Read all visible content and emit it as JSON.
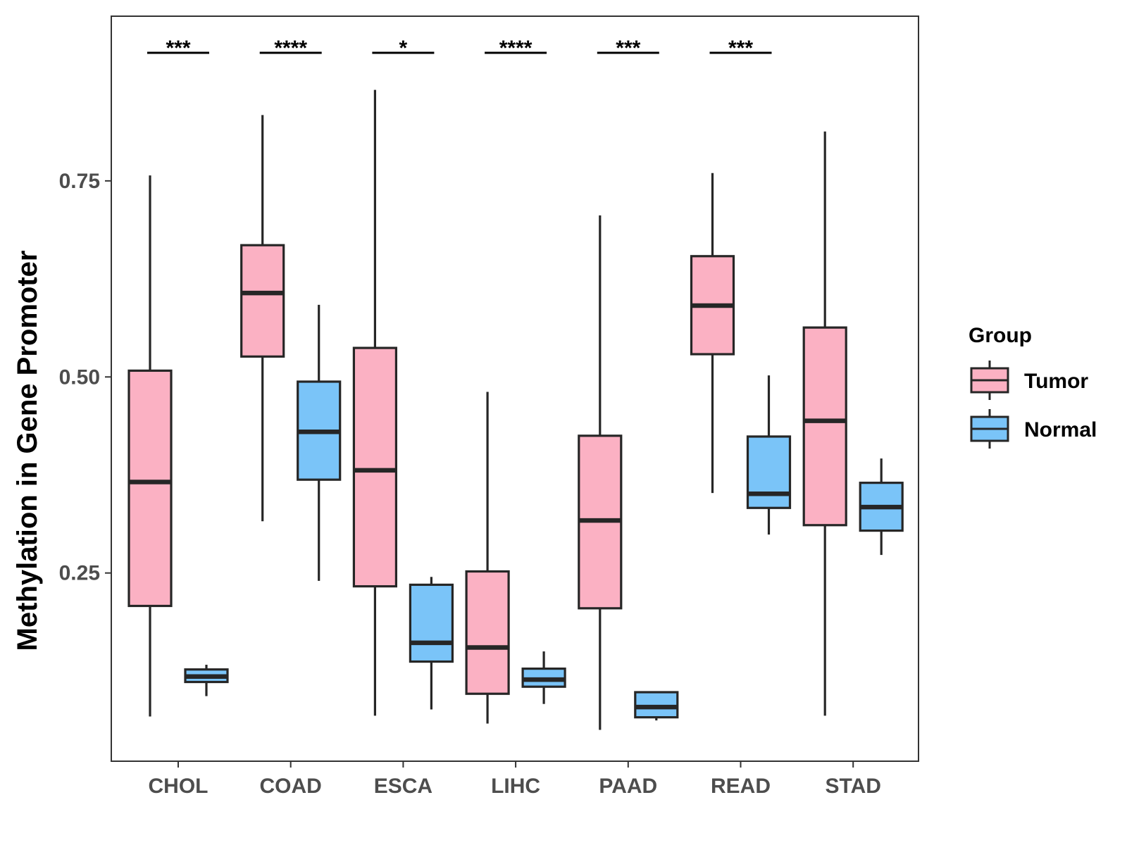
{
  "chart_data": {
    "type": "boxplot",
    "title": "",
    "xlabel": "",
    "ylabel": "Methylation in Gene Promoter",
    "ylim": [
      0.01,
      0.96
    ],
    "yticks": [
      0.25,
      0.5,
      0.75
    ],
    "ytick_labels": [
      "0.25",
      "0.50",
      "0.75"
    ],
    "categories": [
      "CHOL",
      "COAD",
      "ESCA",
      "LIHC",
      "PAAD",
      "READ",
      "STAD"
    ],
    "grid": false,
    "legend": {
      "title": "Group",
      "position": "right",
      "entries": [
        {
          "name": "Tumor",
          "color": "#FBB1C3"
        },
        {
          "name": "Normal",
          "color": "#7AC4F8"
        }
      ]
    },
    "series": [
      {
        "name": "Tumor",
        "color": "#FBB1C3",
        "boxes": [
          {
            "category": "CHOL",
            "whisker_low": 0.067,
            "q1": 0.208,
            "median": 0.366,
            "q3": 0.508,
            "whisker_high": 0.757
          },
          {
            "category": "COAD",
            "whisker_low": 0.316,
            "q1": 0.526,
            "median": 0.607,
            "q3": 0.668,
            "whisker_high": 0.834
          },
          {
            "category": "ESCA",
            "whisker_low": 0.068,
            "q1": 0.233,
            "median": 0.381,
            "q3": 0.537,
            "whisker_high": 0.866
          },
          {
            "category": "LIHC",
            "whisker_low": 0.058,
            "q1": 0.096,
            "median": 0.155,
            "q3": 0.252,
            "whisker_high": 0.481
          },
          {
            "category": "PAAD",
            "whisker_low": 0.05,
            "q1": 0.205,
            "median": 0.317,
            "q3": 0.425,
            "whisker_high": 0.706
          },
          {
            "category": "READ",
            "whisker_low": 0.352,
            "q1": 0.529,
            "median": 0.591,
            "q3": 0.654,
            "whisker_high": 0.76
          },
          {
            "category": "STAD",
            "whisker_low": 0.068,
            "q1": 0.311,
            "median": 0.444,
            "q3": 0.563,
            "whisker_high": 0.813
          }
        ]
      },
      {
        "name": "Normal",
        "color": "#7AC4F8",
        "boxes": [
          {
            "category": "CHOL",
            "whisker_low": 0.093,
            "q1": 0.111,
            "median": 0.118,
            "q3": 0.127,
            "whisker_high": 0.133
          },
          {
            "category": "COAD",
            "whisker_low": 0.24,
            "q1": 0.369,
            "median": 0.43,
            "q3": 0.494,
            "whisker_high": 0.592
          },
          {
            "category": "ESCA",
            "whisker_low": 0.076,
            "q1": 0.137,
            "median": 0.161,
            "q3": 0.235,
            "whisker_high": 0.245
          },
          {
            "category": "LIHC",
            "whisker_low": 0.083,
            "q1": 0.105,
            "median": 0.114,
            "q3": 0.128,
            "whisker_high": 0.15
          },
          {
            "category": "PAAD",
            "whisker_low": 0.062,
            "q1": 0.066,
            "median": 0.079,
            "q3": 0.098,
            "whisker_high": 0.098
          },
          {
            "category": "READ",
            "whisker_low": 0.299,
            "q1": 0.333,
            "median": 0.351,
            "q3": 0.424,
            "whisker_high": 0.502
          },
          {
            "category": "STAD",
            "whisker_low": 0.273,
            "q1": 0.304,
            "median": 0.334,
            "q3": 0.365,
            "whisker_high": 0.396
          }
        ]
      }
    ],
    "significance": [
      {
        "category": "CHOL",
        "label": "***"
      },
      {
        "category": "COAD",
        "label": "****"
      },
      {
        "category": "ESCA",
        "label": "*"
      },
      {
        "category": "LIHC",
        "label": "****"
      },
      {
        "category": "PAAD",
        "label": "***"
      },
      {
        "category": "READ",
        "label": "***"
      }
    ]
  }
}
